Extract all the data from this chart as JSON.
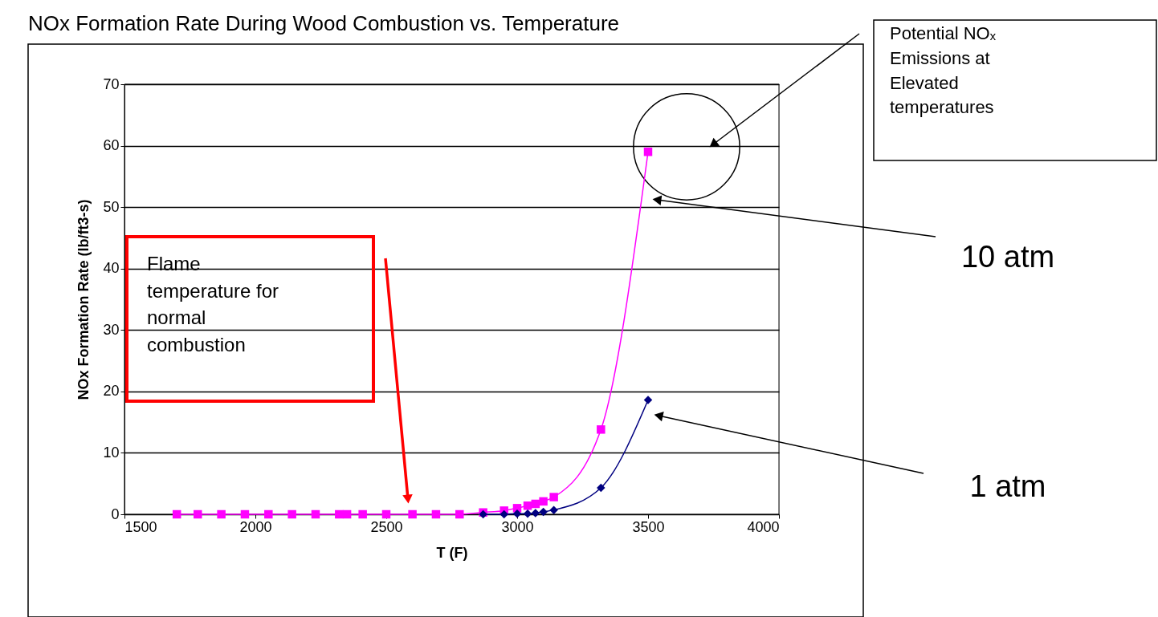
{
  "chart_data": {
    "type": "line",
    "title": "NOx Formation Rate During Wood Combustion vs. Temperature",
    "xlabel": "T (F)",
    "ylabel": "NOx Formation Rate (lb/ft3-s)",
    "xlim": [
      1500,
      4000
    ],
    "xticks": [
      1500,
      2000,
      2500,
      3000,
      3500,
      4000
    ],
    "ylim": [
      0,
      70
    ],
    "yticks": [
      0,
      10,
      20,
      30,
      40,
      50,
      60,
      70
    ],
    "grid": "y",
    "legend": false,
    "series": [
      {
        "name": "10 atm",
        "color": "#ff00ff",
        "marker": "square",
        "x": [
          1700,
          1780,
          1870,
          1960,
          2050,
          2140,
          2230,
          2320,
          2350,
          2410,
          2500,
          2600,
          2690,
          2780,
          2870,
          2950,
          3000,
          3040,
          3070,
          3100,
          3140,
          3320,
          3500
        ],
        "values": [
          0,
          0,
          0,
          0,
          0,
          0,
          0,
          0,
          0,
          0,
          0,
          0,
          0,
          0,
          0.3,
          0.6,
          1.0,
          1.4,
          1.7,
          2.1,
          2.8,
          13.8,
          59
        ]
      },
      {
        "name": "1 atm",
        "color": "#000080",
        "marker": "diamond",
        "x": [
          2870,
          2950,
          3000,
          3040,
          3070,
          3100,
          3140,
          3320,
          3500
        ],
        "values": [
          0,
          0,
          0.1,
          0.1,
          0.2,
          0.4,
          0.7,
          4.3,
          18.6
        ]
      }
    ],
    "annotations": [
      "Flame temperature for normal combustion",
      "Potential NOₓ Emissions at Elevated temperatures"
    ]
  }
}
